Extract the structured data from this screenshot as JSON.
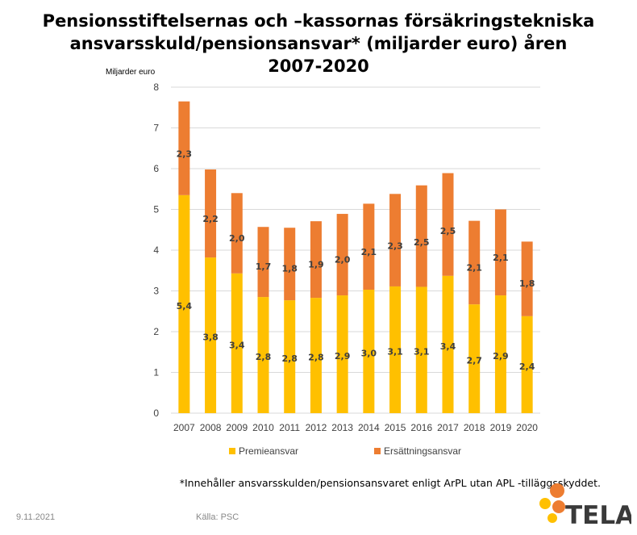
{
  "title_lines": [
    "Pensionsstiftelsernas och –kassornas försäkringstekniska",
    "ansvarsskuld/pensionsansvar* (miljarder euro) åren",
    "2007-2020"
  ],
  "footnote": "*Innehåller ansvarsskulden/pensionsansvaret enligt ArPL utan APL -tilläggsskyddet.",
  "date": "9.11.2021",
  "source": "Källa: PSC",
  "logo": {
    "text": "TELA",
    "icon": "tela-logo-icon"
  },
  "colors": {
    "premieansvar": "#FFC000",
    "ersattningsansvar": "#ED7D31",
    "grid": "#D9D9D9",
    "axis_text": "#404040"
  },
  "chart_data": {
    "type": "bar",
    "stacked": true,
    "ylabel": "Miljarder euro",
    "ylim": [
      0,
      8
    ],
    "yticks": [
      0,
      1,
      2,
      3,
      4,
      5,
      6,
      7,
      8
    ],
    "grid": true,
    "legend_position": "bottom",
    "categories": [
      "2007",
      "2008",
      "2009",
      "2010",
      "2011",
      "2012",
      "2013",
      "2014",
      "2015",
      "2016",
      "2017",
      "2018",
      "2019",
      "2020"
    ],
    "series": [
      {
        "name": "Premieansvar",
        "values": [
          5.35,
          3.82,
          3.43,
          2.85,
          2.77,
          2.83,
          2.89,
          3.03,
          3.11,
          3.1,
          3.37,
          2.67,
          2.89,
          2.38
        ],
        "labels": [
          "5,4",
          "3,8",
          "3,4",
          "2,8",
          "2,8",
          "2,8",
          "2,9",
          "3,0",
          "3,1",
          "3,1",
          "3,4",
          "2,7",
          "2,9",
          "2,4"
        ]
      },
      {
        "name": "Ersättningsansvar",
        "values": [
          2.3,
          2.16,
          1.97,
          1.72,
          1.78,
          1.88,
          2.0,
          2.11,
          2.27,
          2.49,
          2.52,
          2.05,
          2.11,
          1.83
        ],
        "labels": [
          "2,3",
          "2,2",
          "2,0",
          "1,7",
          "1,8",
          "1,9",
          "2,0",
          "2,1",
          "2,3",
          "2,5",
          "2,5",
          "2,1",
          "2,1",
          "1,8"
        ]
      }
    ]
  }
}
